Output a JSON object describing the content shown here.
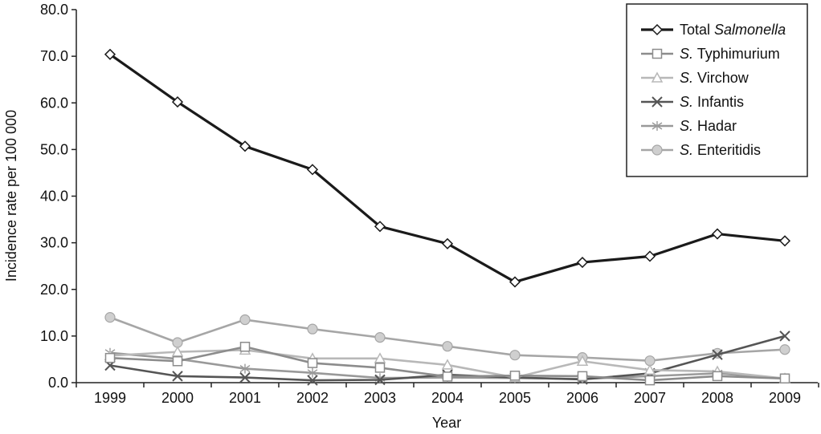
{
  "chart_data": {
    "type": "line",
    "title": "",
    "xlabel": "Year",
    "ylabel": "Incidence rate per 100 000",
    "ylim": [
      0,
      80
    ],
    "yticks": [
      "0.0",
      "10.0",
      "20.0",
      "30.0",
      "40.0",
      "50.0",
      "60.0",
      "70.0",
      "80.0"
    ],
    "x": [
      "1999",
      "2000",
      "2001",
      "2002",
      "2003",
      "2004",
      "2005",
      "2006",
      "2007",
      "2008",
      "2009"
    ],
    "grid": false,
    "legend_position": "top-right",
    "series": [
      {
        "name": "Total Salmonella",
        "prefix": "Total ",
        "italic": "Salmonella",
        "rest": "",
        "color": "#1a1a1a",
        "marker": "diamond",
        "values": [
          70.4,
          60.2,
          50.7,
          45.7,
          33.5,
          29.8,
          21.6,
          25.8,
          27.1,
          31.9,
          30.4
        ]
      },
      {
        "name": "S. Typhimurium",
        "prefix": "",
        "italic": "S.",
        "rest": " Typhimurium",
        "color": "#8c8c8c",
        "marker": "square",
        "values": [
          5.3,
          4.6,
          7.7,
          4.2,
          3.2,
          1.3,
          1.5,
          1.4,
          0.5,
          1.4,
          0.9
        ]
      },
      {
        "name": "S. Virchow",
        "prefix": "",
        "italic": "S.",
        "rest": " Virchow",
        "color": "#b8b8b8",
        "marker": "triangle",
        "values": [
          5.8,
          6.6,
          7.0,
          5.2,
          5.2,
          3.8,
          1.1,
          4.6,
          2.7,
          2.4,
          0.9
        ]
      },
      {
        "name": "S. Infantis",
        "prefix": "",
        "italic": "S.",
        "rest": " Infantis",
        "color": "#555555",
        "marker": "x",
        "values": [
          3.7,
          1.4,
          1.1,
          0.5,
          0.6,
          1.7,
          1.1,
          0.7,
          2.0,
          6.0,
          10.0
        ]
      },
      {
        "name": "S. Hadar",
        "prefix": "",
        "italic": "S.",
        "rest": " Hadar",
        "color": "#999999",
        "marker": "star",
        "values": [
          6.4,
          5.1,
          3.0,
          2.1,
          1.0,
          1.1,
          1.0,
          0.8,
          1.4,
          2.0,
          0.9
        ]
      },
      {
        "name": "S. Enteritidis",
        "prefix": "",
        "italic": "S.",
        "rest": " Enteritidis",
        "color": "#a6a6a6",
        "marker": "circle",
        "values": [
          14.0,
          8.6,
          13.5,
          11.5,
          9.7,
          7.8,
          5.9,
          5.4,
          4.7,
          6.3,
          7.1
        ]
      }
    ]
  }
}
